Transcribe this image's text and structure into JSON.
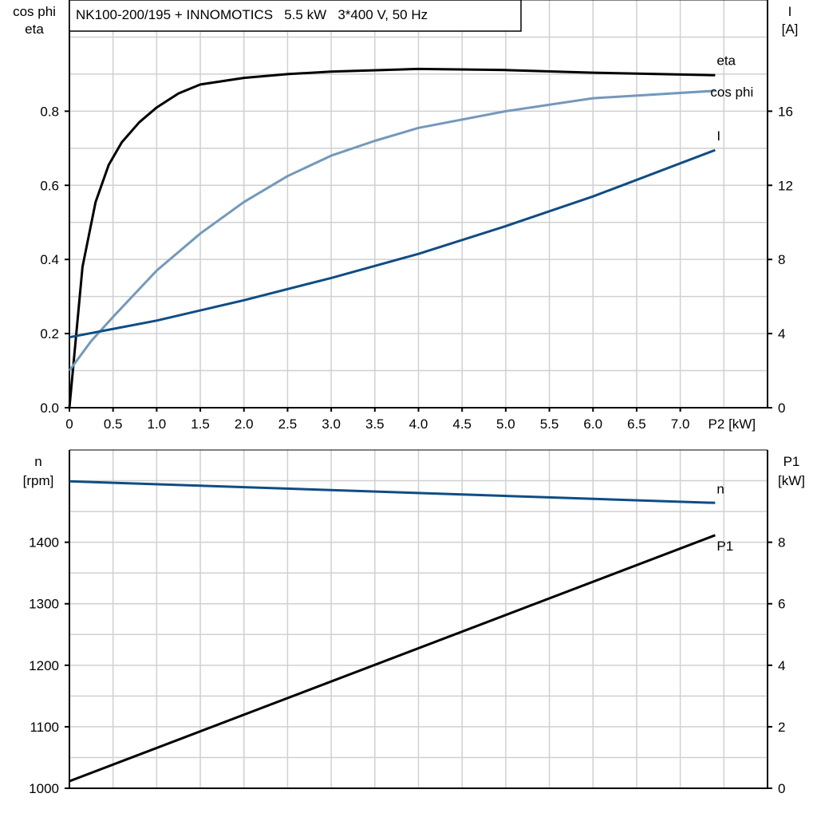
{
  "chart_data": [
    {
      "type": "line",
      "title": "NK100-200/195 + INNOMOTICS   5.5 kW   3*400 V, 50 Hz",
      "xlabel": "P2 [kW]",
      "ylabel_left": [
        "cos phi",
        "eta"
      ],
      "ylabel_right": [
        "I",
        "[A]"
      ],
      "xlim": [
        0,
        8
      ],
      "ylim_left": [
        0,
        1.1
      ],
      "ylim_right": [
        0,
        22
      ],
      "grid": true,
      "x_ticks": [
        "0",
        "0.5",
        "1.0",
        "1.5",
        "2.0",
        "2.5",
        "3.0",
        "3.5",
        "4.0",
        "4.5",
        "5.0",
        "5.5",
        "6.0",
        "6.5",
        "7.0"
      ],
      "y_ticks_left": [
        "0.0",
        "0.2",
        "0.4",
        "0.6",
        "0.8"
      ],
      "y_ticks_right": [
        "0",
        "4",
        "8",
        "12",
        "16"
      ],
      "series": [
        {
          "name": "eta",
          "axis": "left",
          "color": "#000000",
          "x": [
            0,
            0.15,
            0.3,
            0.45,
            0.6,
            0.8,
            1.0,
            1.25,
            1.5,
            2.0,
            2.5,
            3.0,
            4.0,
            5.0,
            6.0,
            7.4
          ],
          "y": [
            0,
            0.38,
            0.555,
            0.655,
            0.716,
            0.77,
            0.81,
            0.848,
            0.872,
            0.89,
            0.9,
            0.907,
            0.914,
            0.911,
            0.904,
            0.897
          ]
        },
        {
          "name": "cos phi",
          "axis": "left",
          "color": "#7399bb",
          "x": [
            0,
            0.25,
            0.5,
            1.0,
            1.5,
            2.0,
            2.5,
            3.0,
            3.5,
            4.0,
            5.0,
            6.0,
            7.4
          ],
          "y": [
            0.1,
            0.18,
            0.245,
            0.37,
            0.47,
            0.555,
            0.625,
            0.68,
            0.72,
            0.755,
            0.8,
            0.835,
            0.855
          ]
        },
        {
          "name": "I",
          "axis": "right",
          "color": "#0e4d85",
          "x": [
            0,
            1.0,
            2.0,
            3.0,
            4.0,
            5.0,
            6.0,
            7.4
          ],
          "y": [
            3.8,
            4.7,
            5.8,
            7.0,
            8.3,
            9.8,
            11.4,
            13.9
          ]
        }
      ]
    },
    {
      "type": "line",
      "ylabel_left": [
        "n",
        "[rpm]"
      ],
      "ylabel_right": [
        "P1",
        "[kW]"
      ],
      "xlim": [
        0,
        8
      ],
      "ylim_left": [
        1000,
        1550
      ],
      "ylim_right": [
        0,
        11
      ],
      "grid": true,
      "y_ticks_left": [
        "1000",
        "1100",
        "1200",
        "1300",
        "1400"
      ],
      "y_ticks_right": [
        "0",
        "2",
        "4",
        "6",
        "8"
      ],
      "series": [
        {
          "name": "n",
          "axis": "left",
          "color": "#0e4d85",
          "x": [
            0,
            7.4
          ],
          "y": [
            1499,
            1464
          ]
        },
        {
          "name": "P1",
          "axis": "right",
          "color": "#000000",
          "x": [
            0,
            7.4
          ],
          "y": [
            0.23,
            8.23
          ]
        }
      ]
    }
  ]
}
